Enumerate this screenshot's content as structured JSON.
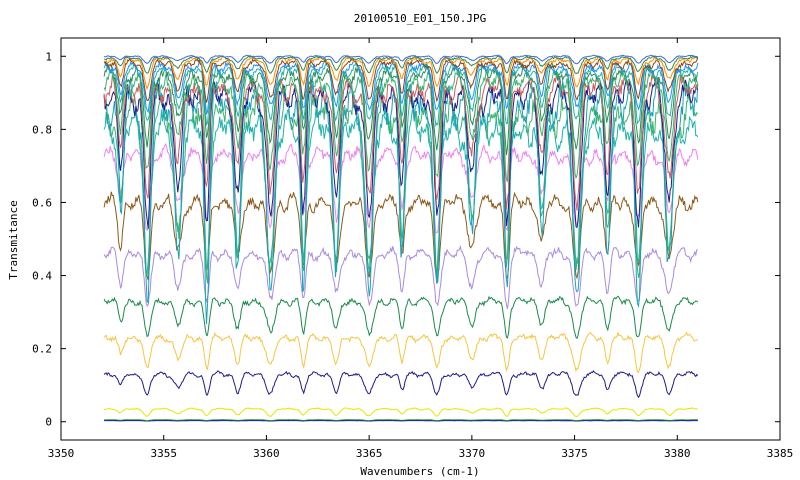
{
  "chart_data": {
    "type": "line",
    "title": "20100510_E01_150.JPG",
    "xlabel": "Wavenumbers (cm-1)",
    "ylabel": "Transmitance",
    "xlim": [
      3350,
      3385
    ],
    "ylim": [
      -0.05,
      1.05
    ],
    "x_ticks": [
      3350,
      3355,
      3360,
      3365,
      3370,
      3375,
      3380,
      3385
    ],
    "y_ticks": [
      0,
      0.2,
      0.4,
      0.6,
      0.8,
      1
    ],
    "x_tick_labels": [
      "3350",
      "3355",
      "3360",
      "3365",
      "3370",
      "3375",
      "3380",
      "3385"
    ],
    "y_tick_labels": [
      "0",
      "0.2",
      "0.4",
      "0.6",
      "0.8",
      "1"
    ],
    "grid": false,
    "legend": "none",
    "x_range_data": [
      3352.1,
      3381.0
    ],
    "absorption_lines": [
      3352.9,
      3354.2,
      3355.7,
      3357.1,
      3358.6,
      3360.2,
      3361.8,
      3363.4,
      3365.0,
      3366.6,
      3368.3,
      3370.0,
      3371.7,
      3373.4,
      3375.1,
      3376.6,
      3378.1,
      3379.6
    ],
    "series": [
      {
        "color": "#0000cc",
        "baseline": 0.003,
        "depth": 0.001
      },
      {
        "color": "#1a7f1a",
        "baseline": 0.005,
        "depth": 0.002
      },
      {
        "color": "#e6e600",
        "baseline": 0.035,
        "depth": 0.02
      },
      {
        "color": "#1c1c8c",
        "baseline": 0.13,
        "depth": 0.06
      },
      {
        "color": "#f5c542",
        "baseline": 0.23,
        "depth": 0.09
      },
      {
        "color": "#1a8a4a",
        "baseline": 0.33,
        "depth": 0.1
      },
      {
        "color": "#a98ae0",
        "baseline": 0.46,
        "depth": 0.14
      },
      {
        "color": "#8b5a1a",
        "baseline": 0.6,
        "depth": 0.2
      },
      {
        "color": "#ee82ee",
        "baseline": 0.73,
        "depth": 0.2
      },
      {
        "color": "#20b2aa",
        "baseline": 0.8,
        "depth": 0.4
      },
      {
        "color": "#3cb371",
        "baseline": 0.84,
        "depth": 0.45
      },
      {
        "color": "#17a2b8",
        "baseline": 0.87,
        "depth": 0.55
      },
      {
        "color": "#1c1c8c",
        "baseline": 0.89,
        "depth": 0.35
      },
      {
        "color": "#cd5c5c",
        "baseline": 0.91,
        "depth": 0.3
      },
      {
        "color": "#3cb371",
        "baseline": 0.93,
        "depth": 0.25
      },
      {
        "color": "#2e8b57",
        "baseline": 0.95,
        "depth": 0.2
      },
      {
        "color": "#20b2aa",
        "baseline": 0.96,
        "depth": 0.15
      },
      {
        "color": "#1e90ff",
        "baseline": 0.97,
        "depth": 0.12
      },
      {
        "color": "#8b4513",
        "baseline": 0.98,
        "depth": 0.1
      },
      {
        "color": "#ff8c00",
        "baseline": 0.99,
        "depth": 0.07
      },
      {
        "color": "#2e8b57",
        "baseline": 0.995,
        "depth": 0.04
      },
      {
        "color": "#4169e1",
        "baseline": 1.0,
        "depth": 0.02
      }
    ]
  }
}
